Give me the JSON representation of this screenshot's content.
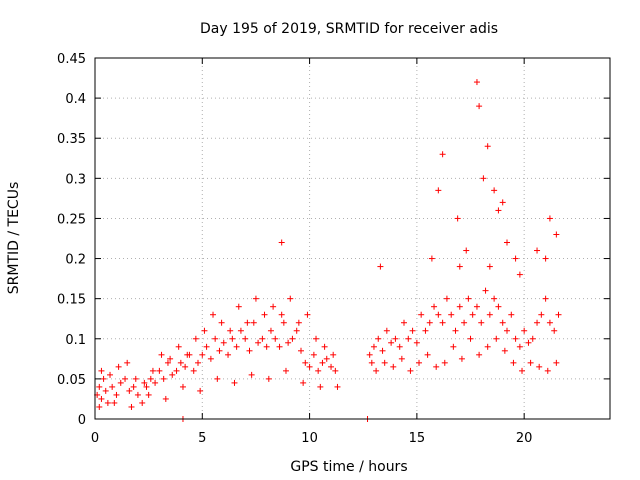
{
  "chart_data": {
    "type": "scatter",
    "title": "Day 195 of 2019, SRMTID for receiver adis",
    "xlabel": "GPS time / hours",
    "ylabel": "SRMTID / TECUs",
    "xlim": [
      0,
      24
    ],
    "ylim": [
      0,
      0.45
    ],
    "xticks": [
      0,
      5,
      10,
      15,
      20
    ],
    "yticks": [
      0,
      0.05,
      0.1,
      0.15,
      0.2,
      0.25,
      0.3,
      0.35,
      0.4,
      0.45
    ],
    "xtick_labels": [
      "0",
      "5",
      "10",
      "15",
      "20"
    ],
    "ytick_labels": [
      "0",
      "0.05",
      "0.1",
      "0.15",
      "0.2",
      "0.25",
      "0.3",
      "0.35",
      "0.4",
      "0.45"
    ],
    "grid": true,
    "marker": "+",
    "color": "#ff0000",
    "series": [
      {
        "name": "SRMTID",
        "x": [
          0.1,
          0.2,
          0.3,
          0.4,
          0.5,
          0.6,
          0.8,
          1.0,
          1.2,
          1.4,
          1.6,
          1.8,
          2.0,
          2.2,
          2.4,
          2.6,
          2.8,
          3.0,
          3.2,
          3.4,
          3.6,
          3.8,
          4.0,
          4.2,
          4.4,
          4.6,
          4.8,
          5.0,
          5.2,
          5.4,
          5.6,
          5.8,
          6.0,
          6.2,
          6.4,
          6.6,
          6.8,
          7.0,
          7.2,
          7.4,
          7.6,
          7.8,
          8.0,
          8.2,
          8.4,
          8.6,
          8.8,
          9.0,
          9.2,
          9.4,
          9.6,
          9.8,
          10.0,
          10.2,
          10.4,
          10.6,
          10.8,
          11.0,
          11.2,
          0.3,
          0.7,
          1.1,
          1.5,
          1.9,
          2.3,
          2.7,
          3.1,
          3.5,
          3.9,
          4.3,
          4.7,
          5.1,
          5.5,
          5.9,
          6.3,
          6.7,
          7.1,
          7.5,
          7.9,
          8.3,
          8.7,
          9.1,
          9.5,
          9.9,
          10.3,
          10.7,
          11.1,
          0.2,
          0.9,
          1.7,
          2.5,
          3.3,
          4.1,
          4.9,
          5.7,
          6.5,
          7.3,
          8.1,
          8.9,
          9.7,
          10.5,
          11.3,
          4.1,
          12.7,
          12.8,
          12.9,
          13.0,
          13.2,
          13.4,
          13.6,
          13.8,
          14.0,
          14.2,
          14.4,
          14.6,
          14.8,
          15.0,
          15.2,
          15.4,
          15.6,
          15.8,
          16.0,
          16.2,
          16.4,
          16.6,
          16.8,
          17.0,
          17.2,
          17.4,
          17.6,
          17.8,
          18.0,
          18.2,
          18.4,
          18.6,
          18.8,
          19.0,
          19.2,
          19.4,
          19.6,
          19.8,
          20.0,
          20.2,
          20.4,
          20.6,
          20.8,
          21.0,
          21.2,
          21.4,
          21.6,
          13.1,
          13.5,
          13.9,
          14.3,
          14.7,
          15.1,
          15.5,
          15.9,
          16.3,
          16.7,
          17.1,
          17.5,
          17.9,
          18.3,
          18.7,
          19.1,
          19.5,
          19.9,
          20.3,
          20.7,
          21.1,
          21.5,
          16.0,
          16.2,
          16.9,
          17.3,
          17.8,
          17.9,
          18.1,
          18.3,
          18.6,
          18.8,
          19.0,
          19.2,
          19.6,
          20.6,
          21.2,
          21.5,
          13.3,
          15.7,
          17.0,
          18.4,
          19.8,
          21.0,
          8.7
        ],
        "y": [
          0.03,
          0.04,
          0.025,
          0.05,
          0.035,
          0.02,
          0.04,
          0.03,
          0.045,
          0.05,
          0.035,
          0.04,
          0.03,
          0.02,
          0.04,
          0.05,
          0.045,
          0.06,
          0.05,
          0.07,
          0.055,
          0.06,
          0.07,
          0.065,
          0.08,
          0.06,
          0.07,
          0.08,
          0.09,
          0.075,
          0.1,
          0.085,
          0.095,
          0.08,
          0.1,
          0.09,
          0.11,
          0.1,
          0.085,
          0.12,
          0.095,
          0.1,
          0.09,
          0.11,
          0.1,
          0.09,
          0.12,
          0.095,
          0.1,
          0.11,
          0.085,
          0.07,
          0.065,
          0.08,
          0.06,
          0.07,
          0.075,
          0.065,
          0.06,
          0.06,
          0.055,
          0.065,
          0.07,
          0.05,
          0.045,
          0.06,
          0.08,
          0.075,
          0.09,
          0.08,
          0.1,
          0.11,
          0.13,
          0.12,
          0.11,
          0.14,
          0.12,
          0.15,
          0.13,
          0.14,
          0.13,
          0.15,
          0.12,
          0.13,
          0.1,
          0.09,
          0.08,
          0.015,
          0.02,
          0.015,
          0.03,
          0.025,
          0.04,
          0.035,
          0.05,
          0.045,
          0.055,
          0.05,
          0.06,
          0.045,
          0.04,
          0.04,
          0.0,
          0.0,
          0.08,
          0.07,
          0.09,
          0.1,
          0.085,
          0.11,
          0.095,
          0.1,
          0.09,
          0.12,
          0.1,
          0.11,
          0.095,
          0.13,
          0.11,
          0.12,
          0.14,
          0.13,
          0.12,
          0.15,
          0.13,
          0.11,
          0.14,
          0.12,
          0.15,
          0.13,
          0.14,
          0.12,
          0.16,
          0.13,
          0.15,
          0.14,
          0.12,
          0.11,
          0.13,
          0.1,
          0.09,
          0.11,
          0.095,
          0.1,
          0.12,
          0.13,
          0.15,
          0.12,
          0.11,
          0.13,
          0.06,
          0.07,
          0.065,
          0.075,
          0.06,
          0.07,
          0.08,
          0.065,
          0.07,
          0.09,
          0.075,
          0.1,
          0.08,
          0.09,
          0.1,
          0.085,
          0.07,
          0.06,
          0.07,
          0.065,
          0.06,
          0.07,
          0.285,
          0.33,
          0.25,
          0.21,
          0.42,
          0.39,
          0.3,
          0.34,
          0.285,
          0.26,
          0.27,
          0.22,
          0.2,
          0.21,
          0.25,
          0.23,
          0.19,
          0.2,
          0.19,
          0.19,
          0.18,
          0.2,
          0.22
        ]
      }
    ]
  }
}
